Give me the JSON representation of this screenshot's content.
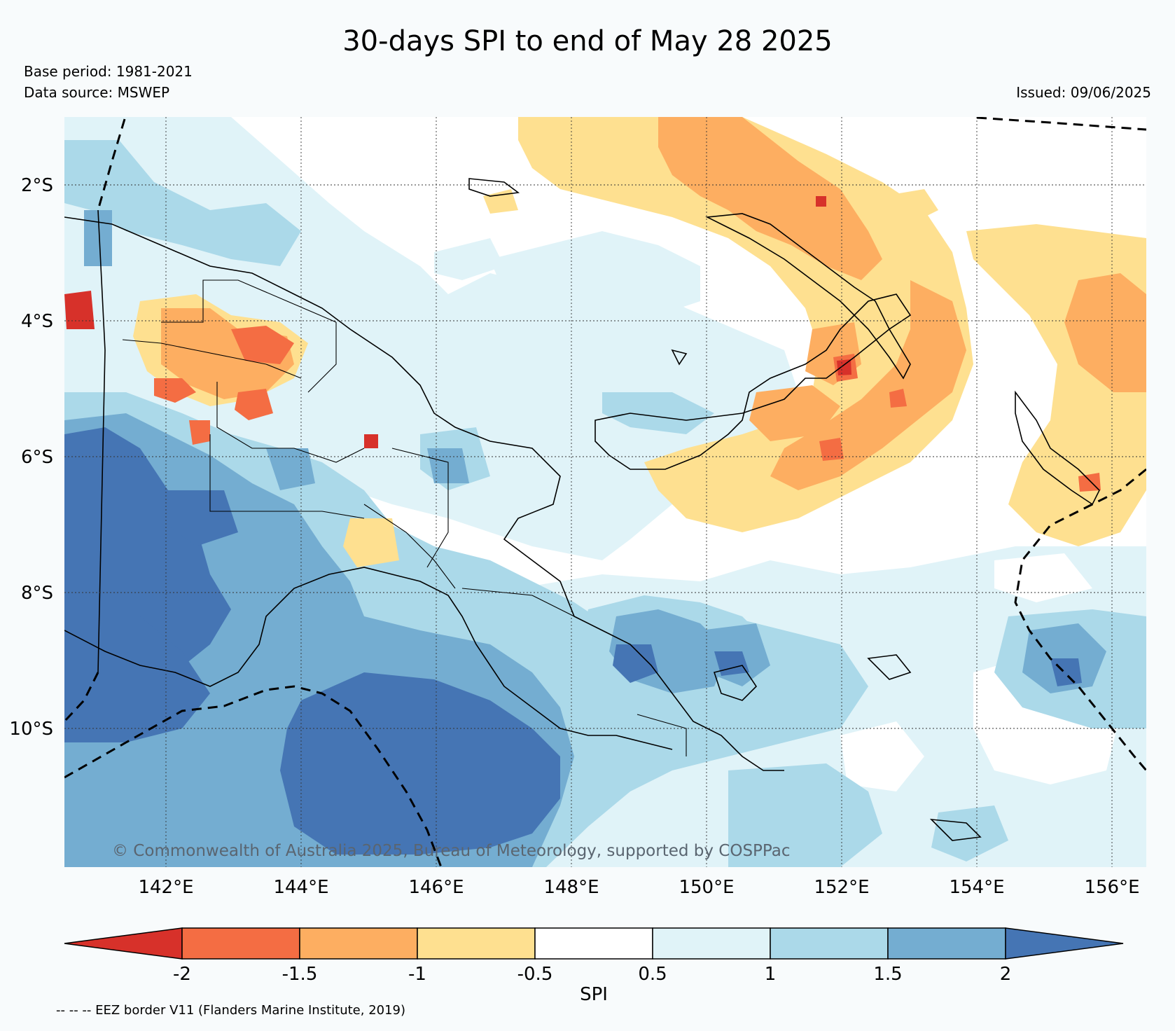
{
  "title": "30-days SPI to end of May 28 2025",
  "base_period": "Base period: 1981-2021",
  "data_source": "Data source: MSWEP",
  "issued": "Issued: 09/06/2025",
  "copyright": "© Commonwealth of Australia 2025, Bureau of Meteorology, supported by COSPPac",
  "eez_note": "-- -- -- EEZ border V11 (Flanders Marine Institute, 2019)",
  "lat_labels": [
    "2°S",
    "4°S",
    "6°S",
    "8°S",
    "10°S"
  ],
  "lon_labels": [
    "142°E",
    "144°E",
    "146°E",
    "148°E",
    "150°E",
    "152°E",
    "154°E",
    "156°E"
  ],
  "colorbar": {
    "label": "SPI",
    "ticks": [
      "-2",
      "-1.5",
      "-1",
      "-0.5",
      "0.5",
      "1",
      "1.5",
      "2"
    ],
    "colors": {
      "below_-2": "#d7312a",
      "-2_-1.5": "#f46d43",
      "-1.5_-1": "#fdae61",
      "-1_-0.5": "#fee090",
      "-0.5_0.5": "#ffffff",
      "0.5_1": "#e0f3f8",
      "1_1.5": "#abd9e9",
      "1.5_2": "#74add1",
      "above_2": "#4575b4"
    }
  }
}
